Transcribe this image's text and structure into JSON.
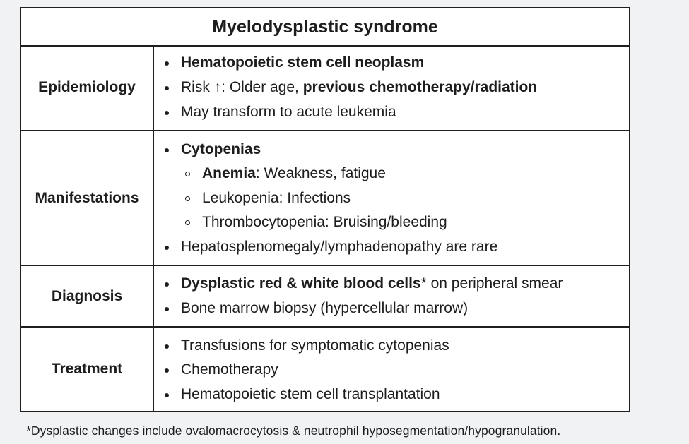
{
  "title": "Myelodysplastic syndrome",
  "rows": {
    "epidemiology": {
      "label": "Epidemiology",
      "item1": "Hematopoietic stem cell neoplasm",
      "item2_prefix": "Risk ↑: Older age, ",
      "item2_bold": "previous chemotherapy/radiation",
      "item3": "May transform to acute leukemia"
    },
    "manifestations": {
      "label": "Manifestations",
      "item1": "Cytopenias",
      "sub1_bold": "Anemia",
      "sub1_rest": ": Weakness, fatigue",
      "sub2": "Leukopenia: Infections",
      "sub3": "Thrombocytopenia: Bruising/bleeding",
      "item2": "Hepatosplenomegaly/lymphadenopathy are rare"
    },
    "diagnosis": {
      "label": "Diagnosis",
      "item1_bold": "Dysplastic red & white blood cells",
      "item1_rest": "* on peripheral smear",
      "item2": "Bone marrow biopsy (hypercellular marrow)"
    },
    "treatment": {
      "label": "Treatment",
      "item1": "Transfusions for symptomatic cytopenias",
      "item2": "Chemotherapy",
      "item3": "Hematopoietic stem cell transplantation"
    }
  },
  "footnote": "*Dysplastic changes include ovalomacrocytosis & neutrophil hyposegmentation/hypogranulation."
}
